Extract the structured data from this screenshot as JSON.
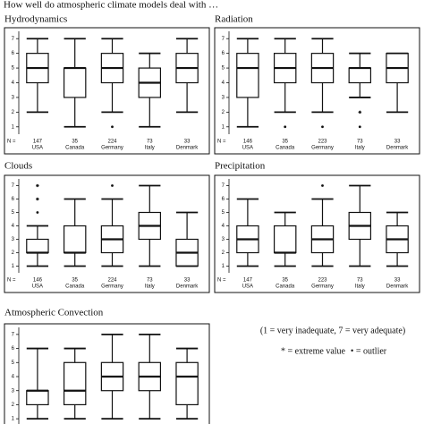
{
  "title": "How well do atmospheric climate models deal with …",
  "notes": [
    "(1 = very inadequate, 7 = very adequate)",
    "* = extreme value",
    "• = outlier"
  ],
  "chart_data": [
    {
      "type": "box",
      "title": "Hydrodynamics",
      "n_label": "N =",
      "categories": [
        "USA",
        "Canada",
        "Germany",
        "Italy",
        "Denmark"
      ],
      "n": [
        147,
        35,
        224,
        73,
        33
      ],
      "ylim": [
        0.5,
        7.5
      ],
      "yticks": [
        1,
        2,
        3,
        4,
        5,
        6,
        7
      ],
      "boxes": [
        {
          "min": 2,
          "q1": 4,
          "median": 5,
          "q3": 6,
          "max": 7,
          "outliers": [],
          "extremes": []
        },
        {
          "min": 1,
          "q1": 3,
          "median": 5,
          "q3": 5,
          "max": 7,
          "outliers": [],
          "extremes": []
        },
        {
          "min": 2,
          "q1": 4,
          "median": 5,
          "q3": 6,
          "max": 7,
          "outliers": [
            1
          ],
          "extremes": []
        },
        {
          "min": 1,
          "q1": 3,
          "median": 4,
          "q3": 5,
          "max": 6,
          "outliers": [],
          "extremes": []
        },
        {
          "min": 2,
          "q1": 4,
          "median": 5,
          "q3": 6,
          "max": 7,
          "outliers": [],
          "extremes": []
        }
      ]
    },
    {
      "type": "box",
      "title": "Radiation",
      "n_label": "N =",
      "categories": [
        "USA",
        "Canada",
        "Germany",
        "Italy",
        "Denmark"
      ],
      "n": [
        146,
        35,
        223,
        73,
        33
      ],
      "ylim": [
        0.5,
        7.5
      ],
      "yticks": [
        1,
        2,
        3,
        4,
        5,
        6,
        7
      ],
      "boxes": [
        {
          "min": 1,
          "q1": 3,
          "median": 5,
          "q3": 6,
          "max": 7,
          "outliers": [],
          "extremes": []
        },
        {
          "min": 2,
          "q1": 4,
          "median": 5,
          "q3": 6,
          "max": 7,
          "outliers": [
            1
          ],
          "extremes": []
        },
        {
          "min": 2,
          "q1": 4,
          "median": 5,
          "q3": 6,
          "max": 7,
          "outliers": [
            1
          ],
          "extremes": []
        },
        {
          "min": 3,
          "q1": 4,
          "median": 5,
          "q3": 5,
          "max": 6,
          "outliers": [
            1
          ],
          "extremes": [
            2
          ]
        },
        {
          "min": 2,
          "q1": 4,
          "median": 5,
          "q3": 6,
          "max": 6,
          "outliers": [],
          "extremes": []
        }
      ]
    },
    {
      "type": "box",
      "title": "Clouds",
      "n_label": "N =",
      "categories": [
        "USA",
        "Canada",
        "Germany",
        "Italy",
        "Denmark"
      ],
      "n": [
        146,
        35,
        224,
        73,
        33
      ],
      "ylim": [
        0.5,
        7.5
      ],
      "yticks": [
        1,
        2,
        3,
        4,
        5,
        6,
        7
      ],
      "boxes": [
        {
          "min": 1,
          "q1": 2,
          "median": 2,
          "q3": 3,
          "max": 4,
          "outliers": [
            5
          ],
          "extremes": [
            6,
            7
          ]
        },
        {
          "min": 1,
          "q1": 2,
          "median": 2,
          "q3": 4,
          "max": 6,
          "outliers": [],
          "extremes": []
        },
        {
          "min": 1,
          "q1": 2,
          "median": 3,
          "q3": 4,
          "max": 6,
          "outliers": [
            7
          ],
          "extremes": []
        },
        {
          "min": 1,
          "q1": 3,
          "median": 4,
          "q3": 5,
          "max": 7,
          "outliers": [],
          "extremes": []
        },
        {
          "min": 1,
          "q1": 1,
          "median": 2,
          "q3": 3,
          "max": 5,
          "outliers": [],
          "extremes": []
        }
      ]
    },
    {
      "type": "box",
      "title": "Precipitation",
      "n_label": "N =",
      "categories": [
        "USA",
        "Canada",
        "Germany",
        "Italy",
        "Denmark"
      ],
      "n": [
        147,
        35,
        223,
        73,
        33
      ],
      "ylim": [
        0.5,
        7.5
      ],
      "yticks": [
        1,
        2,
        3,
        4,
        5,
        6,
        7
      ],
      "boxes": [
        {
          "min": 1,
          "q1": 2,
          "median": 3,
          "q3": 4,
          "max": 6,
          "outliers": [],
          "extremes": []
        },
        {
          "min": 1,
          "q1": 2,
          "median": 2,
          "q3": 4,
          "max": 5,
          "outliers": [],
          "extremes": []
        },
        {
          "min": 1,
          "q1": 2,
          "median": 3,
          "q3": 4,
          "max": 6,
          "outliers": [
            7
          ],
          "extremes": []
        },
        {
          "min": 1,
          "q1": 3,
          "median": 4,
          "q3": 5,
          "max": 7,
          "outliers": [],
          "extremes": []
        },
        {
          "min": 1,
          "q1": 2,
          "median": 3,
          "q3": 4,
          "max": 5,
          "outliers": [],
          "extremes": []
        }
      ]
    },
    {
      "type": "box",
      "title": "Atmospheric Convection",
      "categories": [
        null,
        null,
        null,
        null,
        null
      ],
      "ylim": [
        0.5,
        7.5
      ],
      "yticks": [
        1,
        2,
        3,
        4,
        5,
        6,
        7
      ],
      "boxes": [
        {
          "min": 1,
          "q1": 2,
          "median": 3,
          "q3": 3,
          "max": 6,
          "outliers": [],
          "extremes": []
        },
        {
          "min": 1,
          "q1": 2,
          "median": 3,
          "q3": 5,
          "max": 6,
          "outliers": [],
          "extremes": []
        },
        {
          "min": 1,
          "q1": 3,
          "median": 4,
          "q3": 5,
          "max": 7,
          "outliers": [],
          "extremes": []
        },
        {
          "min": 1,
          "q1": 3,
          "median": 4,
          "q3": 5,
          "max": 7,
          "outliers": [],
          "extremes": []
        },
        {
          "min": 1,
          "q1": 2,
          "median": 4,
          "q3": 5,
          "max": 6,
          "outliers": [],
          "extremes": []
        }
      ]
    }
  ]
}
